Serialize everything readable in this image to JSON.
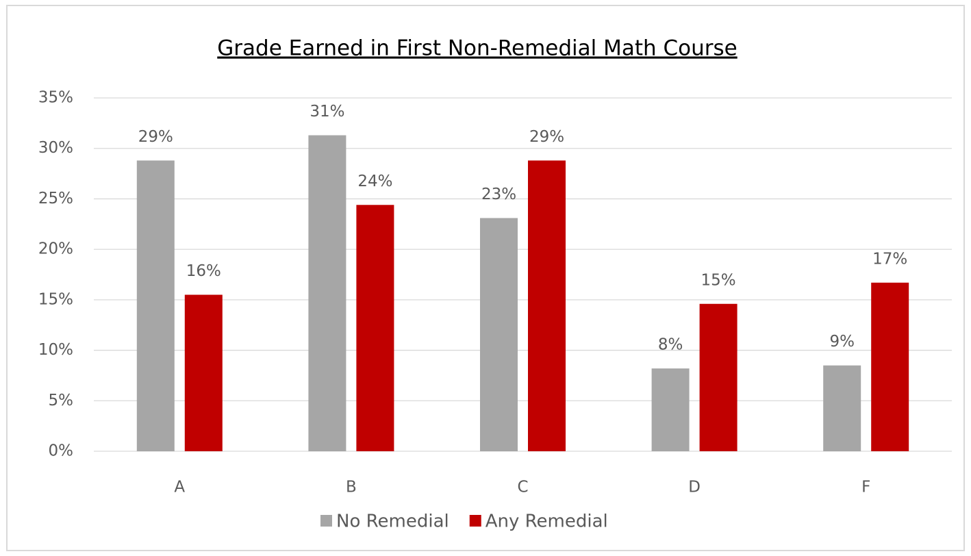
{
  "chart_data": {
    "type": "bar",
    "title": "Grade Earned in First Non-Remedial Math Course",
    "categories": [
      "A",
      "B",
      "C",
      "D",
      "F"
    ],
    "series": [
      {
        "name": "No Remedial",
        "color": "#a6a6a6",
        "values": [
          28.8,
          31.3,
          23.1,
          8.2,
          8.5
        ],
        "value_labels": [
          "29%",
          "31%",
          "23%",
          "8%",
          "9%"
        ]
      },
      {
        "name": "Any Remedial",
        "color": "#c00000",
        "values": [
          15.5,
          24.4,
          28.8,
          14.6,
          16.7
        ],
        "value_labels": [
          "16%",
          "24%",
          "29%",
          "15%",
          "17%"
        ]
      }
    ],
    "ylim": [
      0,
      35
    ],
    "yticks": [
      {
        "value": 0,
        "label": "0%"
      },
      {
        "value": 5,
        "label": "5%"
      },
      {
        "value": 10,
        "label": "10%"
      },
      {
        "value": 15,
        "label": "15%"
      },
      {
        "value": 20,
        "label": "20%"
      },
      {
        "value": 25,
        "label": "25%"
      },
      {
        "value": 30,
        "label": "30%"
      },
      {
        "value": 35,
        "label": "35%"
      }
    ],
    "grid": true,
    "legend": "bottom"
  }
}
